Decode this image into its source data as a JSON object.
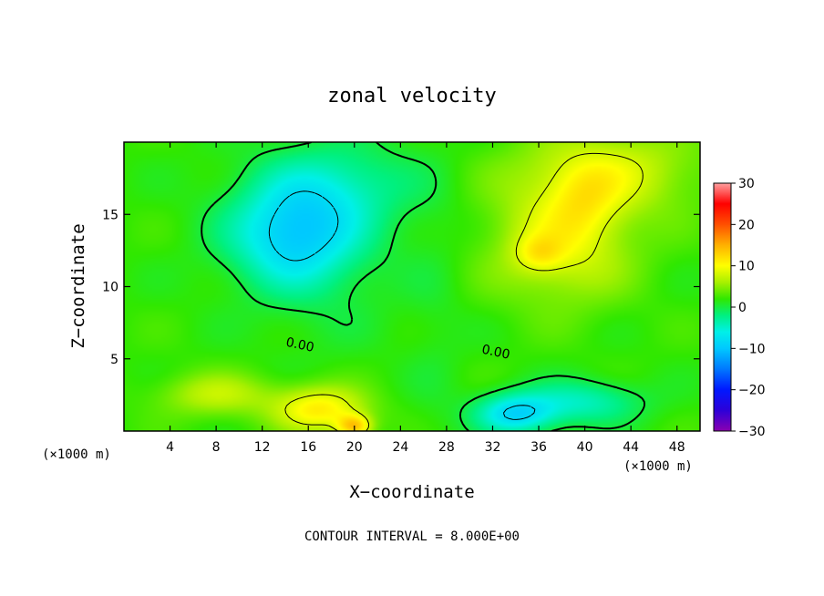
{
  "chart_data": {
    "type": "heatmap",
    "title": "zonal velocity",
    "xlabel": "X−coordinate",
    "ylabel": "Z−coordinate",
    "x_unit_left": "(×1000 m)",
    "x_unit_right": "(×1000 m)",
    "footer": "CONTOUR INTERVAL = 8.000E+00",
    "xlim": [
      0,
      50
    ],
    "ylim": [
      0,
      20
    ],
    "xticks": [
      4,
      8,
      12,
      16,
      20,
      24,
      28,
      32,
      36,
      40,
      44,
      48
    ],
    "yticks": [
      5,
      10,
      15
    ],
    "clim": [
      -30,
      30
    ],
    "colorbar_ticks": [
      30,
      20,
      10,
      0,
      -10,
      -20,
      -30
    ],
    "contour_levels": [
      -8,
      0,
      8
    ],
    "contour_label": "0.00",
    "features": [
      {
        "x": 14.5,
        "z": 13.5,
        "value": -10,
        "sx": 5.5,
        "sz": 3.5
      },
      {
        "x": 17.5,
        "z": 12,
        "value": -2,
        "sx": 6,
        "sz": 6
      },
      {
        "x": 18.5,
        "z": 17,
        "value": -5,
        "sx": 7,
        "sz": 3
      },
      {
        "x": 38,
        "z": 13,
        "value": 7,
        "sx": 6,
        "sz": 4
      },
      {
        "x": 36,
        "z": 12.3,
        "value": 4,
        "sx": 2,
        "sz": 1.2
      },
      {
        "x": 40,
        "z": 16,
        "value": 3,
        "sx": 3,
        "sz": 2.5
      },
      {
        "x": 42,
        "z": 18,
        "value": 6,
        "sx": 8,
        "sz": 3
      },
      {
        "x": 17,
        "z": 1.5,
        "value": 9,
        "sx": 4,
        "sz": 1.6
      },
      {
        "x": 20,
        "z": 0.3,
        "value": 10,
        "sx": 1.5,
        "sz": 0.8
      },
      {
        "x": 8,
        "z": 2.5,
        "value": 5,
        "sx": 5,
        "sz": 1.5
      },
      {
        "x": 34,
        "z": 1.2,
        "value": -10,
        "sx": 3.5,
        "sz": 1.4
      },
      {
        "x": 40,
        "z": 2,
        "value": -6,
        "sx": 5,
        "sz": 1.5
      },
      {
        "x": 1,
        "z": 9,
        "value": 0,
        "sx": 1.5,
        "sz": 8
      },
      {
        "x": 27,
        "z": 8,
        "value": -1,
        "sx": 2.5,
        "sz": 10
      }
    ],
    "background_value": 2,
    "colorscale": [
      [
        -30,
        "#8a00b0"
      ],
      [
        -25,
        "#2d00d8"
      ],
      [
        -20,
        "#0018ff"
      ],
      [
        -15,
        "#0078ff"
      ],
      [
        -10,
        "#00c8ff"
      ],
      [
        -6,
        "#00f0e8"
      ],
      [
        -2,
        "#00f080"
      ],
      [
        2,
        "#30e800"
      ],
      [
        6,
        "#a8f000"
      ],
      [
        10,
        "#ffff00"
      ],
      [
        15,
        "#ffb000"
      ],
      [
        20,
        "#ff5000"
      ],
      [
        25,
        "#ff0000"
      ],
      [
        30,
        "#ffa0a0"
      ]
    ]
  }
}
